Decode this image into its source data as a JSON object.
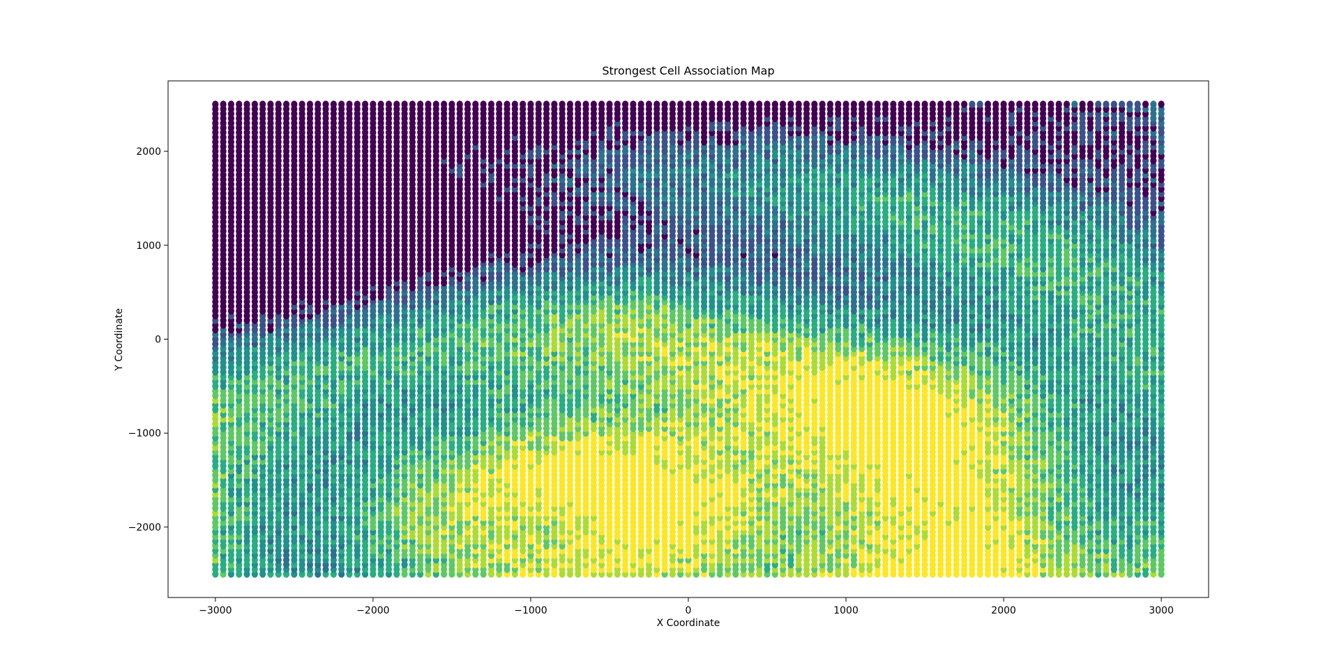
{
  "chart_data": {
    "type": "scatter",
    "title": "Strongest Cell Association Map",
    "xlabel": "X Coordinate",
    "ylabel": "Y Coordinate",
    "xlim": [
      -3300,
      3300
    ],
    "ylim": [
      -2750,
      2750
    ],
    "xticks": [
      -3000,
      -2000,
      -1000,
      0,
      1000,
      2000,
      3000
    ],
    "yticks": [
      -2000,
      -1000,
      0,
      1000,
      2000
    ],
    "xtick_labels": [
      "−3000",
      "−2000",
      "−1000",
      "0",
      "1000",
      "2000",
      "3000"
    ],
    "ytick_labels": [
      "−2000",
      "−1000",
      "0",
      "1000",
      "2000"
    ],
    "grid": false,
    "legend": "none",
    "colormap": "viridis",
    "point_grid": {
      "x_start": -3000,
      "x_end": 3000,
      "x_step": 50,
      "y_start": -2500,
      "y_end": 2500,
      "y_step": 50
    },
    "class_colors": [
      "#440154",
      "#3b528b",
      "#2c728e",
      "#21918c",
      "#28ae80",
      "#5ec962",
      "#addc30",
      "#fde725"
    ]
  }
}
